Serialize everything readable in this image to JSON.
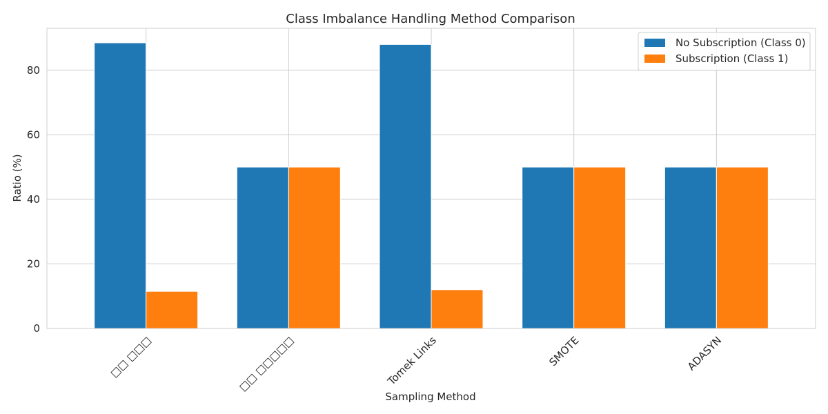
{
  "chart_data": {
    "type": "bar",
    "title": "Class Imbalance Handling Method Comparison",
    "xlabel": "Sampling Method",
    "ylabel": "Ratio (%)",
    "categories": [
      "□□ □□□",
      "□□ □□□□□",
      "Tomek Links",
      "SMOTE",
      "ADASYN"
    ],
    "series": [
      {
        "name": "No Subscription (Class 0)",
        "color": "#1f77b4",
        "values": [
          88.5,
          50.0,
          88.0,
          50.0,
          50.0
        ]
      },
      {
        "name": "Subscription (Class 1)",
        "color": "#ff7f0e",
        "values": [
          11.5,
          50.0,
          12.0,
          50.0,
          50.0
        ]
      }
    ],
    "ylim": [
      0,
      93
    ],
    "yticks": [
      0,
      20,
      40,
      60,
      80
    ],
    "grid": true,
    "legend_position": "top-right"
  }
}
